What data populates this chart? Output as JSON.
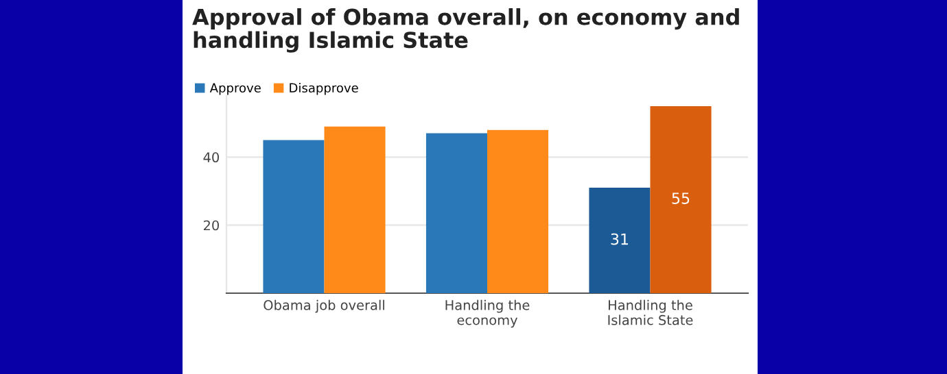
{
  "chart_data": {
    "type": "bar",
    "title": "Approval of Obama overall, on economy and\nhandling Islamic State",
    "categories": [
      "Obama job overall",
      "Handling the\neconomy",
      "Handling the\nIslamic State"
    ],
    "series": [
      {
        "name": "Approve",
        "color": "#2a78b8",
        "colors": [
          "#2a78b8",
          "#2a78b8",
          "#1b5a94"
        ],
        "values": [
          45,
          47,
          31
        ],
        "value_labels": [
          null,
          null,
          "31"
        ]
      },
      {
        "name": "Disapprove",
        "color": "#ff8a1a",
        "colors": [
          "#ff8a1a",
          "#ff8a1a",
          "#d95f0e"
        ],
        "values": [
          49,
          48,
          55
        ],
        "value_labels": [
          null,
          null,
          "55"
        ]
      }
    ],
    "ylim": [
      0,
      58
    ],
    "yticks": [
      20,
      40
    ],
    "grid": "y",
    "legend": "top left"
  }
}
